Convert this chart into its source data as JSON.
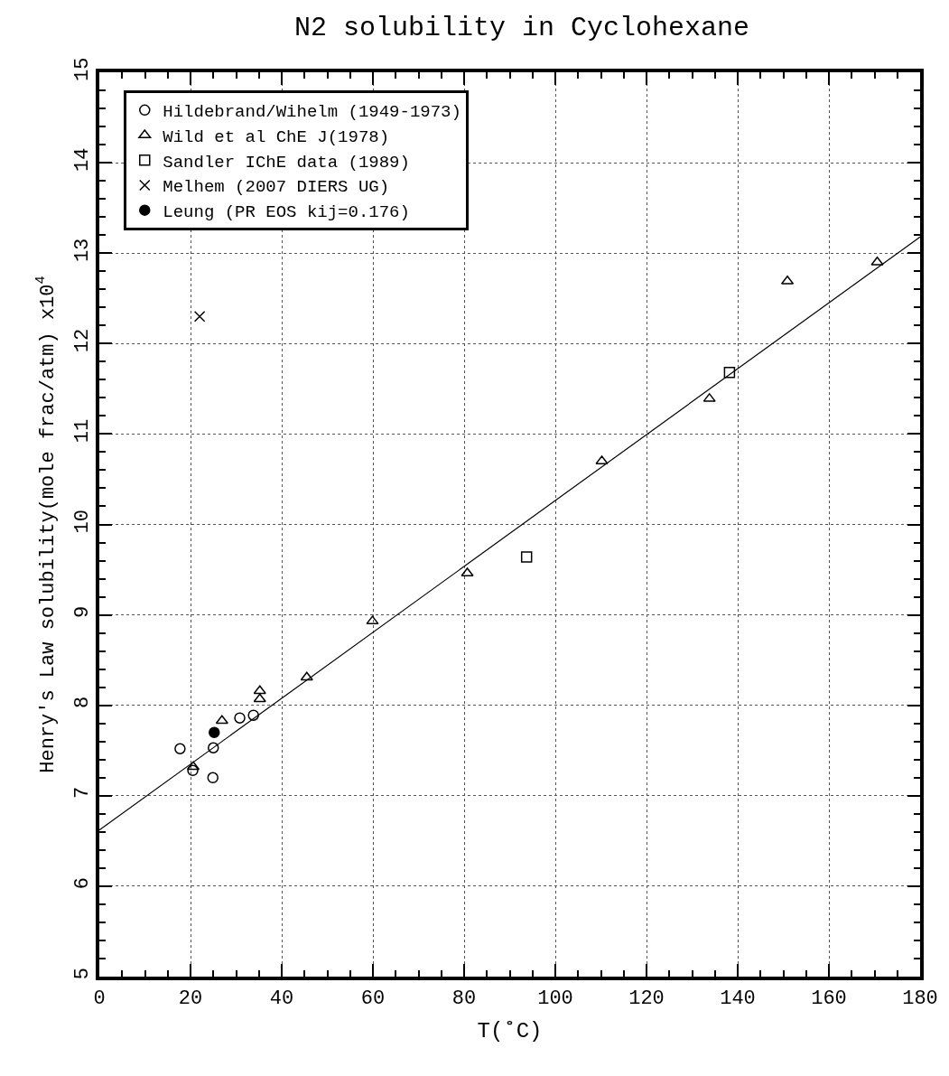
{
  "chart_data": {
    "type": "scatter",
    "title": "N2 solubility in Cyclohexane",
    "xlabel": "T(˚C)",
    "ylabel": "Henry's Law solubility(mole frac/atm) x10$^{4}$",
    "xlim": [
      0,
      180
    ],
    "xticks": [
      0,
      20,
      40,
      60,
      80,
      100,
      120,
      140,
      160,
      180
    ],
    "ylim": [
      5,
      15
    ],
    "yticks": [
      5,
      6,
      7,
      8,
      9,
      10,
      11,
      12,
      13,
      14,
      15
    ],
    "grid": true,
    "legend": "top left",
    "series": [
      {
        "name": "Hildebrand/Wihelm (1949-1973)",
        "color": "#000000",
        "marker": "circle-open",
        "x": [
          17.7,
          20.5,
          24.9,
          25,
          30.8,
          33.8
        ],
        "values": [
          7.52,
          7.28,
          7.2,
          7.53,
          7.86,
          7.89
        ]
      },
      {
        "name": "Wild et al ChE J(1978)",
        "color": "#000000",
        "marker": "triangle-open",
        "x": [
          20.6,
          26.9,
          35.2,
          35.2,
          45.5,
          59.9,
          80.7,
          110.2,
          133.8,
          150.9,
          170.6
        ],
        "values": [
          7.32,
          7.83,
          8.16,
          8.07,
          8.31,
          8.93,
          9.46,
          10.7,
          11.39,
          12.69,
          12.9
        ]
      },
      {
        "name": "Sandler IChE data (1989)",
        "color": "#000000",
        "marker": "square-open",
        "x": [
          93.7,
          138.2
        ],
        "values": [
          9.64,
          11.68
        ]
      },
      {
        "name": "Melhem (2007 DIERS UG)",
        "color": "#000000",
        "marker": "cross",
        "x": [
          22
        ],
        "values": [
          12.3
        ]
      },
      {
        "name": "Leung (PR EOS kij=0.176)",
        "color": "#000000",
        "marker": "circle",
        "x": [
          25.2
        ],
        "values": [
          7.7
        ]
      },
      {
        "type": "line",
        "color": "#000000",
        "line_style": "solid",
        "x": [
          0,
          180
        ],
        "values": [
          6.62,
          13.18
        ]
      }
    ]
  }
}
